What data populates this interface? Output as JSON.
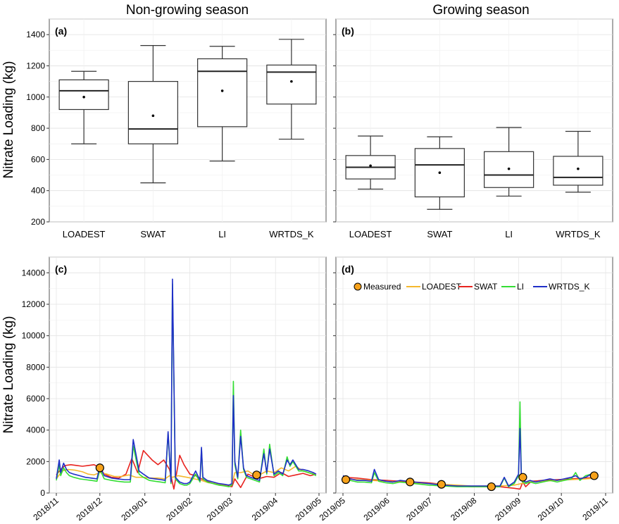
{
  "titles": {
    "left": "Non-growing season",
    "right": "Growing season"
  },
  "ylabel": "Nitrate Loading (kg)",
  "legend": [
    "Measured",
    "LOADEST",
    "SWAT",
    "LI",
    "WRTDS_K"
  ],
  "colors": {
    "LOADEST": "#f5b82e",
    "SWAT": "#e8231f",
    "LI": "#33dd33",
    "WRTDS_K": "#1f2fc8",
    "Measured": "#f7a21b"
  },
  "chart_data": [
    {
      "panel": "(a)",
      "type": "box",
      "title": "Non-growing season",
      "ylabel": "Nitrate Loading (kg)",
      "ylim": [
        200,
        1500
      ],
      "yticks": [
        200,
        400,
        600,
        800,
        1000,
        1200,
        1400
      ],
      "categories": [
        "LOADEST",
        "SWAT",
        "LI",
        "WRTDS_K"
      ],
      "boxes": [
        {
          "min": 700,
          "q1": 920,
          "median": 1040,
          "q3": 1110,
          "max": 1165,
          "mean": 1000
        },
        {
          "min": 450,
          "q1": 700,
          "median": 795,
          "q3": 1100,
          "max": 1330,
          "mean": 880
        },
        {
          "min": 590,
          "q1": 810,
          "median": 1165,
          "q3": 1245,
          "max": 1325,
          "mean": 1040
        },
        {
          "min": 730,
          "q1": 955,
          "median": 1160,
          "q3": 1205,
          "max": 1370,
          "mean": 1100
        }
      ]
    },
    {
      "panel": "(b)",
      "type": "box",
      "title": "Growing season",
      "ylim": [
        200,
        1500
      ],
      "categories": [
        "LOADEST",
        "SWAT",
        "LI",
        "WRTDS_K"
      ],
      "boxes": [
        {
          "min": 410,
          "q1": 475,
          "median": 550,
          "q3": 625,
          "max": 750,
          "mean": 560
        },
        {
          "min": 280,
          "q1": 360,
          "median": 565,
          "q3": 670,
          "max": 745,
          "mean": 515
        },
        {
          "min": 365,
          "q1": 420,
          "median": 500,
          "q3": 650,
          "max": 805,
          "mean": 540
        },
        {
          "min": 390,
          "q1": 435,
          "median": 485,
          "q3": 620,
          "max": 780,
          "mean": 540
        }
      ]
    },
    {
      "panel": "(c)",
      "type": "line",
      "ylabel": "Nitrate Loading (kg)",
      "ylim": [
        0,
        15000
      ],
      "yticks": [
        0,
        2000,
        4000,
        6000,
        8000,
        10000,
        12000,
        14000
      ],
      "xlim": [
        0,
        181
      ],
      "xticks": [
        {
          "label": "2018/11",
          "t": 0
        },
        {
          "label": "2018/12",
          "t": 30
        },
        {
          "label": "2019/01",
          "t": 61
        },
        {
          "label": "2019/02",
          "t": 92
        },
        {
          "label": "2019/03",
          "t": 120
        },
        {
          "label": "2019/04",
          "t": 151
        },
        {
          "label": "2019/05",
          "t": 181
        }
      ],
      "series": [
        {
          "name": "SWAT",
          "t": [
            0,
            3,
            6,
            10,
            14,
            18,
            22,
            26,
            30,
            33,
            38,
            43,
            48,
            52,
            56,
            60,
            63,
            66,
            70,
            74,
            78,
            81,
            85,
            88,
            92,
            96,
            100,
            105,
            110,
            114,
            118,
            121,
            123,
            127,
            132,
            137,
            141,
            145,
            150,
            155,
            160,
            165,
            170,
            175,
            179
          ],
          "values": [
            1150,
            1500,
            1750,
            1800,
            1750,
            1700,
            1750,
            1800,
            1600,
            1200,
            1000,
            950,
            1200,
            2200,
            1300,
            2700,
            2400,
            2100,
            1800,
            2100,
            1500,
            250,
            2400,
            1800,
            1200,
            1100,
            900,
            700,
            550,
            500,
            450,
            400,
            900,
            350,
            1200,
            1000,
            950,
            1050,
            1000,
            1300,
            1050,
            1150,
            1250,
            1100,
            1200
          ]
        },
        {
          "name": "LOADEST",
          "t": [
            0,
            4,
            8,
            13,
            18,
            22,
            26,
            30,
            35,
            40,
            45,
            50,
            55,
            60,
            65,
            70,
            75,
            78,
            80,
            84,
            90,
            95,
            100,
            105,
            110,
            114,
            118,
            121,
            123,
            127,
            132,
            137,
            141,
            145,
            150,
            155,
            160,
            165,
            170,
            175,
            179
          ],
          "values": [
            900,
            1400,
            1500,
            1450,
            1350,
            1200,
            1150,
            1300,
            1200,
            1050,
            1050,
            1150,
            1000,
            1000,
            950,
            950,
            900,
            1100,
            1000,
            1100,
            1000,
            900,
            800,
            650,
            600,
            550,
            500,
            550,
            1300,
            1300,
            1400,
            1100,
            1200,
            1400,
            1300,
            1600,
            1400,
            1700,
            1400,
            1250,
            1200
          ]
        },
        {
          "name": "LI",
          "t": [
            0,
            2,
            3,
            5,
            7,
            9,
            12,
            16,
            20,
            24,
            28,
            30,
            33,
            38,
            42,
            47,
            51,
            53,
            57,
            60,
            64,
            68,
            72,
            75,
            77,
            79,
            80,
            82,
            85,
            88,
            90,
            92,
            96,
            99,
            100,
            101,
            104,
            108,
            112,
            116,
            119,
            121,
            122,
            123,
            125,
            127,
            129,
            131,
            134,
            137,
            140,
            143,
            145,
            147,
            150,
            153,
            156,
            159,
            161,
            163,
            167,
            170,
            174,
            177,
            179
          ],
          "values": [
            800,
            1800,
            1100,
            1600,
            1300,
            1100,
            1000,
            900,
            850,
            800,
            750,
            1500,
            900,
            800,
            750,
            700,
            700,
            3000,
            1200,
            1000,
            800,
            750,
            700,
            650,
            3800,
            600,
            13300,
            900,
            600,
            500,
            500,
            600,
            1200,
            700,
            2800,
            900,
            700,
            600,
            500,
            450,
            400,
            500,
            7100,
            1800,
            900,
            4000,
            1500,
            1000,
            900,
            800,
            700,
            2800,
            1200,
            3100,
            1100,
            1300,
            1100,
            2300,
            1700,
            2000,
            1400,
            1400,
            1300,
            1200,
            1100
          ]
        },
        {
          "name": "WRTDS_K",
          "t": [
            0,
            2,
            3,
            5,
            7,
            9,
            12,
            16,
            20,
            24,
            28,
            30,
            33,
            38,
            42,
            47,
            51,
            53,
            57,
            60,
            64,
            68,
            72,
            75,
            77,
            79,
            80,
            82,
            85,
            88,
            90,
            92,
            96,
            99,
            100,
            101,
            104,
            108,
            112,
            116,
            119,
            121,
            122,
            123,
            125,
            127,
            129,
            131,
            134,
            137,
            140,
            143,
            145,
            147,
            150,
            153,
            156,
            159,
            161,
            163,
            167,
            170,
            174,
            177,
            179
          ],
          "values": [
            900,
            2100,
            1300,
            1900,
            1500,
            1300,
            1200,
            1100,
            1000,
            950,
            900,
            1700,
            1100,
            950,
            900,
            850,
            850,
            3400,
            1400,
            1200,
            950,
            900,
            850,
            800,
            3900,
            700,
            13600,
            1000,
            700,
            600,
            600,
            700,
            1400,
            800,
            2900,
            1000,
            800,
            700,
            600,
            550,
            500,
            600,
            6200,
            2000,
            1000,
            3600,
            1600,
            1100,
            1000,
            900,
            800,
            2500,
            1300,
            2800,
            1200,
            1400,
            1200,
            2100,
            1800,
            2100,
            1500,
            1500,
            1400,
            1300,
            1200
          ]
        }
      ],
      "measured": {
        "t": [
          30,
          138
        ],
        "values": [
          1600,
          1150
        ]
      }
    },
    {
      "panel": "(d)",
      "type": "line",
      "ylim": [
        0,
        15000
      ],
      "xlim": [
        0,
        184
      ],
      "xticks": [
        {
          "label": "2019/05",
          "t": 0
        },
        {
          "label": "2019/06",
          "t": 31
        },
        {
          "label": "2019/07",
          "t": 61
        },
        {
          "label": "2019/08",
          "t": 92
        },
        {
          "label": "2019/09",
          "t": 123
        },
        {
          "label": "2019/10",
          "t": 153
        },
        {
          "label": "2019/11",
          "t": 184
        }
      ],
      "series": [
        {
          "name": "SWAT",
          "t": [
            0,
            10,
            20,
            30,
            40,
            50,
            60,
            70,
            80,
            90,
            100,
            110,
            115,
            120,
            124,
            126,
            128,
            132,
            140,
            150,
            160,
            170,
            178
          ],
          "values": [
            1000,
            950,
            850,
            800,
            750,
            700,
            650,
            550,
            450,
            400,
            400,
            400,
            350,
            300,
            250,
            700,
            400,
            750,
            800,
            850,
            900,
            950,
            1000
          ]
        },
        {
          "name": "LOADEST",
          "t": [
            0,
            10,
            20,
            30,
            40,
            50,
            60,
            70,
            80,
            90,
            100,
            110,
            120,
            130,
            140,
            150,
            160,
            170,
            178
          ],
          "values": [
            900,
            850,
            800,
            750,
            700,
            650,
            600,
            550,
            500,
            450,
            450,
            450,
            500,
            700,
            750,
            800,
            850,
            900,
            950
          ]
        },
        {
          "name": "LI",
          "t": [
            0,
            5,
            10,
            15,
            20,
            22,
            25,
            30,
            35,
            40,
            45,
            50,
            55,
            60,
            70,
            80,
            90,
            100,
            110,
            113,
            116,
            120,
            123,
            124,
            125,
            126,
            128,
            131,
            135,
            140,
            145,
            150,
            155,
            160,
            163,
            166,
            170,
            174,
            178
          ],
          "values": [
            1000,
            800,
            700,
            700,
            650,
            1300,
            750,
            650,
            600,
            700,
            650,
            600,
            550,
            500,
            450,
            400,
            400,
            400,
            400,
            950,
            400,
            600,
            1100,
            5800,
            900,
            700,
            600,
            700,
            600,
            700,
            800,
            700,
            800,
            900,
            1300,
            800,
            1100,
            1200,
            900
          ]
        },
        {
          "name": "WRTDS_K",
          "t": [
            0,
            5,
            10,
            15,
            20,
            22,
            25,
            30,
            35,
            40,
            45,
            50,
            55,
            60,
            70,
            80,
            90,
            100,
            110,
            113,
            116,
            120,
            123,
            124,
            125,
            126,
            128,
            131,
            135,
            140,
            145,
            150,
            155,
            160,
            163,
            166,
            170,
            174,
            178
          ],
          "values": [
            1100,
            900,
            800,
            800,
            750,
            1500,
            850,
            750,
            700,
            800,
            750,
            700,
            650,
            600,
            500,
            450,
            450,
            450,
            450,
            1000,
            450,
            700,
            1200,
            4100,
            1000,
            800,
            700,
            800,
            700,
            800,
            900,
            800,
            900,
            1000,
            1100,
            900,
            1000,
            1200,
            1000
          ]
        }
      ],
      "measured": {
        "t": [
          2,
          47,
          69,
          104,
          126,
          176
        ],
        "values": [
          850,
          700,
          550,
          400,
          1000,
          1100
        ]
      }
    }
  ]
}
